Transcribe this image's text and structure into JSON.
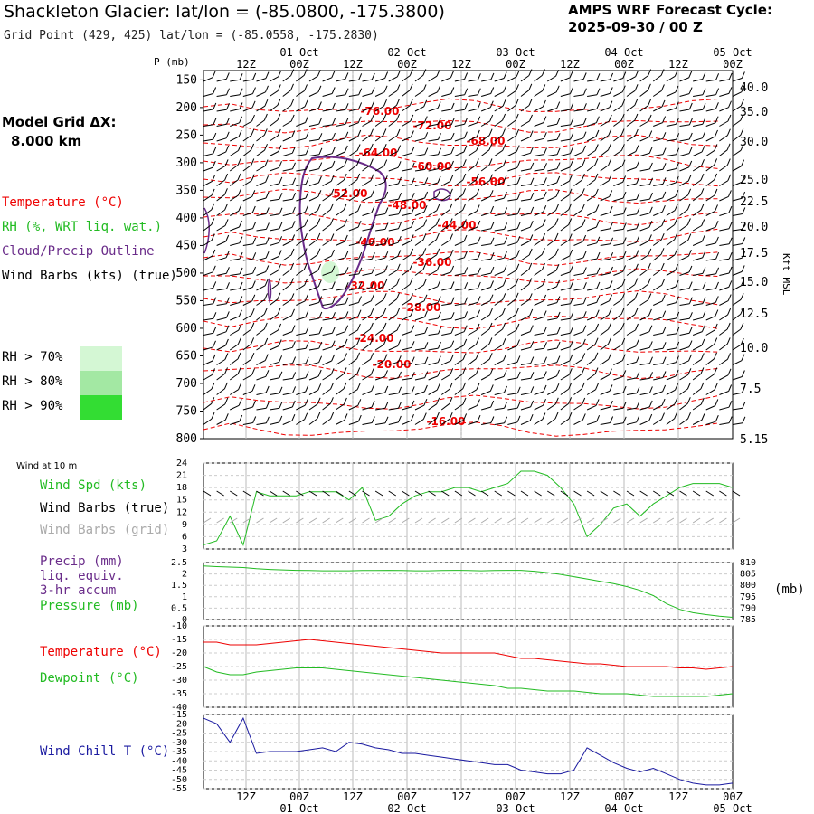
{
  "header": {
    "title": "Shackleton Glacier:  lat/lon = (-85.0800, -175.3800)",
    "grid_point": "Grid Point (429, 425) lat/lon = (-85.0558, -175.2830)",
    "cycle_line1": "AMPS WRF Forecast Cycle:",
    "cycle_line2": "2025-09-30 / 00  Z"
  },
  "legend": {
    "model_grid_line1": "Model Grid ΔX:",
    "model_grid_line2": "8.000 km",
    "temperature": "Temperature (°C)",
    "rh": "RH (%, WRT liq. wat.)",
    "cloud": "Cloud/Precip Outline",
    "wind_barbs": "Wind Barbs (kts) (true)",
    "rh70": "RH > 70%",
    "rh80": "RH > 80%",
    "rh90": "RH > 90%",
    "wind10m": "Wind at 10 m",
    "wind_spd": "Wind Spd (kts)",
    "wind_barbs_true": "Wind Barbs (true)",
    "wind_barbs_grid": "Wind Barbs (grid)",
    "precip": "Precip (mm)",
    "liq_equiv": "liq. equiv.",
    "accum": "3-hr accum",
    "pressure": "Pressure (mb)",
    "pressure_unit": "(mb)",
    "temp2": "Temperature (°C)",
    "dewpoint": "Dewpoint (°C)",
    "windchill": "Wind Chill T (°C)",
    "p_axis_label": "P (mb)",
    "kft_label": "Kft MSL"
  },
  "colors": {
    "temperature": "#ee0000",
    "rh": "#22bb22",
    "cloud": "#6a2c8a",
    "windchill": "#1a1aa0",
    "rh70": "#d4f7d4",
    "rh80": "#a3e8a3",
    "rh90": "#33dd33",
    "grid_barbs": "#aaaaaa"
  },
  "chart_data": [
    {
      "type": "time-height cross section",
      "time_ticks": [
        "12Z",
        "00Z",
        "12Z",
        "00Z",
        "12Z",
        "00Z",
        "12Z",
        "00Z",
        "12Z",
        "00Z"
      ],
      "date_ticks": [
        "01 Oct",
        "02 Oct",
        "03 Oct",
        "04 Oct",
        "05 Oct"
      ],
      "pressure_ticks": [
        "150",
        "200",
        "250",
        "300",
        "350",
        "400",
        "450",
        "500",
        "550",
        "600",
        "650",
        "700",
        "750",
        "800"
      ],
      "height_ticks": [
        "40.0",
        "35.0",
        "30.0",
        "25.0",
        "22.5",
        "20.0",
        "17.5",
        "15.0",
        "12.5",
        "10.0",
        "7.5",
        "5.15"
      ],
      "temperature_contours": [
        "-76.00",
        "-72.00",
        "-68.00",
        "-64.00",
        "-60.00",
        "-56.00",
        "-52.00",
        "-48.00",
        "-44.00",
        "-40.00",
        "-36.00",
        "-32.00",
        "-28.00",
        "-24.00",
        "-20.00",
        "-16.00"
      ]
    },
    {
      "type": "line",
      "title": "Wind at 10 m",
      "ylabel": "Wind Spd (kts)",
      "ylim": [
        3,
        24
      ],
      "y_ticks": [
        "24",
        "21",
        "18",
        "15",
        "12",
        "9",
        "6",
        "3"
      ],
      "x_hours": [
        0,
        3,
        6,
        9,
        12,
        15,
        18,
        21,
        24,
        27,
        30,
        33,
        36,
        39,
        42,
        45,
        48,
        51,
        54,
        57,
        60,
        63,
        66,
        69,
        72,
        75,
        78,
        81,
        84,
        87,
        90,
        93,
        96,
        99,
        102,
        105,
        108,
        111,
        114,
        117,
        120
      ],
      "values": [
        4,
        5,
        11,
        4,
        17,
        16,
        16,
        16,
        17,
        17,
        17,
        15,
        18,
        10,
        11,
        14,
        16,
        17,
        17,
        18,
        18,
        17,
        18,
        19,
        22,
        22,
        21,
        18,
        14,
        6,
        9,
        13,
        14,
        11,
        14,
        16,
        18,
        19,
        19,
        19,
        18
      ]
    },
    {
      "type": "line",
      "ylabel": "Pressure (mb)",
      "left_ticks": [
        "2.5",
        "2",
        "1.5",
        "1",
        "0.5",
        "0"
      ],
      "right_ticks": [
        "810",
        "805",
        "800",
        "795",
        "790",
        "785"
      ],
      "ylim_right": [
        785,
        810
      ],
      "pressure_values": [
        808.5,
        808.2,
        808.0,
        807.8,
        807.3,
        807.0,
        806.8,
        806.6,
        806.5,
        806.4,
        806.4,
        806.4,
        806.5,
        806.5,
        806.6,
        806.5,
        806.4,
        806.4,
        806.5,
        806.6,
        806.5,
        806.4,
        806.5,
        806.6,
        806.6,
        806.2,
        805.6,
        804.8,
        803.8,
        802.8,
        801.8,
        800.8,
        799.5,
        797.8,
        795.5,
        792.0,
        789.5,
        788.0,
        787.2,
        786.5,
        786.0
      ],
      "precip_values": [
        0,
        0,
        0,
        0,
        0,
        0,
        0,
        0,
        0,
        0,
        0,
        0,
        0,
        0,
        0,
        0,
        0,
        0,
        0,
        0,
        0,
        0,
        0,
        0,
        0,
        0,
        0,
        0,
        0,
        0,
        0,
        0,
        0,
        0,
        0,
        0,
        0,
        0,
        0,
        0,
        0
      ]
    },
    {
      "type": "line",
      "y_ticks": [
        "-10",
        "-15",
        "-20",
        "-25",
        "-30",
        "-35",
        "-40"
      ],
      "ylim": [
        -40,
        -10
      ],
      "series": [
        {
          "name": "Temperature (°C)",
          "values": [
            -16,
            -16,
            -17,
            -17,
            -17,
            -16.5,
            -16,
            -15.5,
            -15,
            -15.5,
            -16,
            -16.5,
            -17,
            -17.5,
            -18,
            -18.5,
            -19,
            -19.5,
            -20,
            -20,
            -20,
            -20,
            -20,
            -21,
            -22,
            -22,
            -22.5,
            -23,
            -23.5,
            -24,
            -24,
            -24.5,
            -25,
            -25,
            -25,
            -25,
            -25.5,
            -25.5,
            -26,
            -25.5,
            -25
          ]
        },
        {
          "name": "Dewpoint (°C)",
          "values": [
            -25,
            -27,
            -28,
            -28,
            -27,
            -26.5,
            -26,
            -25.5,
            -25.5,
            -25.5,
            -26,
            -26.5,
            -27,
            -27.5,
            -28,
            -28.5,
            -29,
            -29.5,
            -30,
            -30.5,
            -31,
            -31.5,
            -32,
            -33,
            -33,
            -33.5,
            -34,
            -34,
            -34,
            -34.5,
            -35,
            -35,
            -35,
            -35.5,
            -36,
            -36,
            -36,
            -36,
            -36,
            -35.5,
            -35
          ]
        }
      ]
    },
    {
      "type": "line",
      "ylabel": "Wind Chill T (°C)",
      "y_ticks": [
        "-15",
        "-20",
        "-25",
        "-30",
        "-35",
        "-40",
        "-45",
        "-50",
        "-55"
      ],
      "ylim": [
        -55,
        -15
      ],
      "values": [
        -17,
        -20,
        -30,
        -17,
        -36,
        -35,
        -35,
        -35,
        -34,
        -33,
        -35,
        -30,
        -31,
        -33,
        -34,
        -36,
        -36,
        -37,
        -38,
        -39,
        -40,
        -41,
        -42,
        -42,
        -45,
        -46,
        -47,
        -47,
        -45,
        -33,
        -37,
        -41,
        -44,
        -46,
        -44,
        -47,
        -50,
        -52,
        -53,
        -53,
        -52
      ]
    }
  ]
}
